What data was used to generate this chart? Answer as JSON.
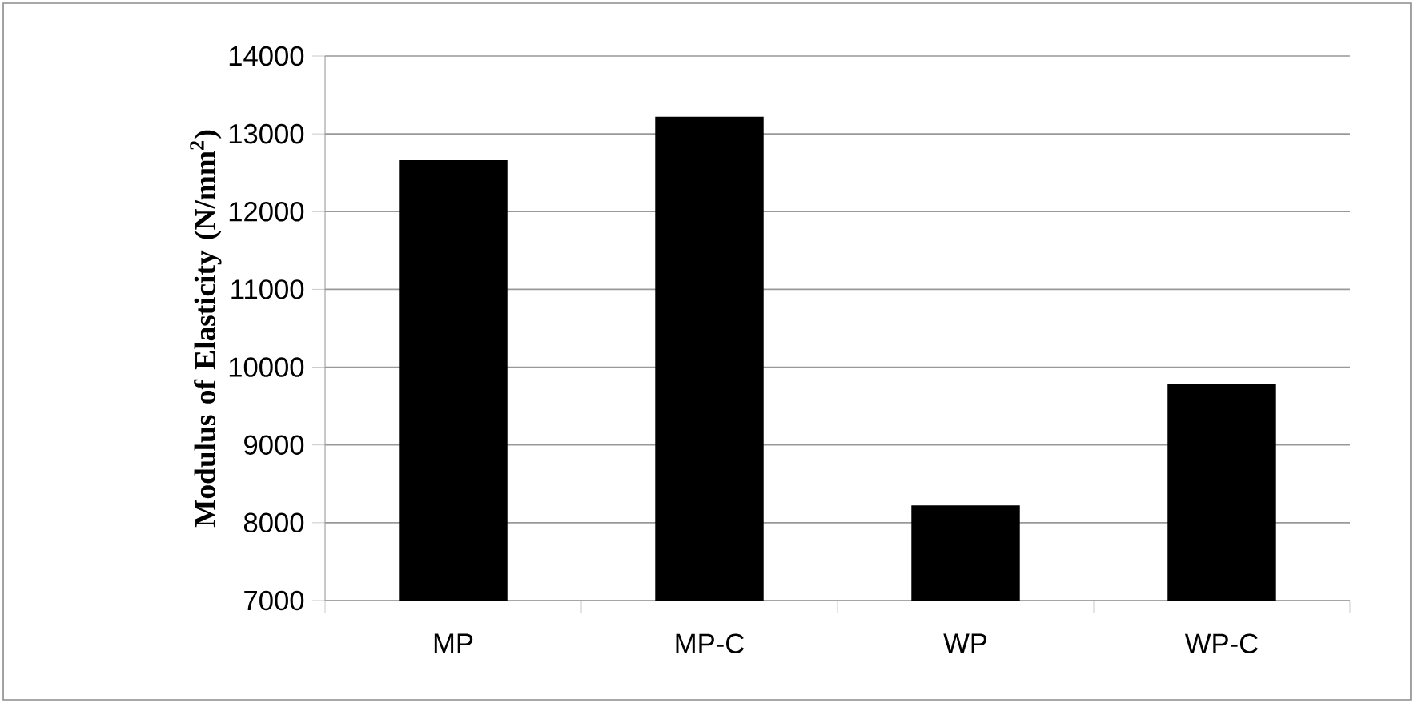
{
  "chart_data": {
    "type": "bar",
    "ylabel": "Modulus of Elasticity (N/mm$^{2}$)",
    "categories": [
      "MP",
      "MP-C",
      "WP",
      "WP-C"
    ],
    "values": [
      12650,
      13210,
      8210,
      9770
    ],
    "color": "#000000",
    "ylim": [
      7000,
      14000
    ],
    "yticks": [
      7000,
      8000,
      9000,
      10000,
      11000,
      12000,
      13000,
      14000
    ],
    "grid": "y"
  }
}
